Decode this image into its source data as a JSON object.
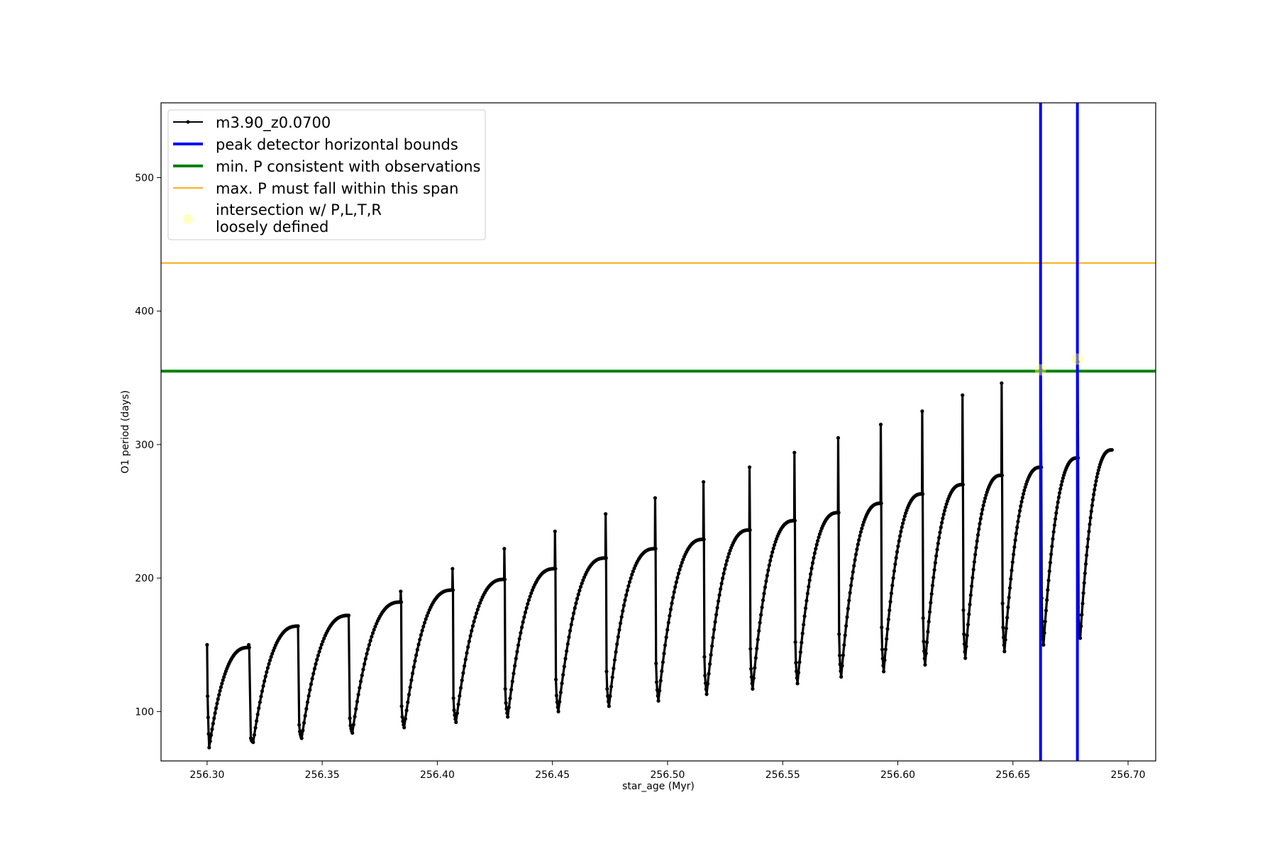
{
  "chart_data": {
    "type": "line",
    "title": "",
    "xlabel": "star_age (Myr)",
    "ylabel": "O1 period (days)",
    "xlim": [
      256.28,
      256.712
    ],
    "ylim": [
      63,
      556
    ],
    "xticks": [
      256.3,
      256.35,
      256.4,
      256.45,
      256.5,
      256.55,
      256.6,
      256.65,
      256.7
    ],
    "xtick_labels": [
      "256.30",
      "256.35",
      "256.40",
      "256.45",
      "256.50",
      "256.55",
      "256.60",
      "256.65",
      "256.70"
    ],
    "yticks": [
      100,
      200,
      300,
      400,
      500
    ],
    "ytick_labels": [
      "100",
      "200",
      "300",
      "400",
      "500"
    ],
    "grid": false,
    "legend_position": "top-left",
    "colors": {
      "series": "#000000",
      "bounds": "#0000ff",
      "min_p": "#008000",
      "max_p": "#ffa500",
      "intersection": "#ffff66"
    },
    "series": [
      {
        "name": "m3.90_z0.0700",
        "marker": "dot",
        "cycles": [
          {
            "t_start": 256.3,
            "t_end": 256.318,
            "p_start": 150,
            "p_min": 73,
            "p_max": 148,
            "p_spike": 150
          },
          {
            "t_start": 256.319,
            "t_end": 256.3395,
            "p_start": 80,
            "p_min": 77,
            "p_max": 164,
            "p_spike": 165
          },
          {
            "t_start": 256.34,
            "t_end": 256.3615,
            "p_start": 90,
            "p_min": 80,
            "p_max": 172,
            "p_spike": 172
          },
          {
            "t_start": 256.362,
            "t_end": 256.384,
            "p_start": 95,
            "p_min": 84,
            "p_max": 182,
            "p_spike": 190
          },
          {
            "t_start": 256.3845,
            "t_end": 256.4065,
            "p_start": 104,
            "p_min": 88,
            "p_max": 191,
            "p_spike": 207
          },
          {
            "t_start": 256.407,
            "t_end": 256.429,
            "p_start": 110,
            "p_min": 92,
            "p_max": 199,
            "p_spike": 222
          },
          {
            "t_start": 256.4295,
            "t_end": 256.451,
            "p_start": 117,
            "p_min": 96,
            "p_max": 207,
            "p_spike": 235
          },
          {
            "t_start": 256.4515,
            "t_end": 256.473,
            "p_start": 124,
            "p_min": 100,
            "p_max": 215,
            "p_spike": 248
          },
          {
            "t_start": 256.4735,
            "t_end": 256.4945,
            "p_start": 130,
            "p_min": 104,
            "p_max": 222,
            "p_spike": 260
          },
          {
            "t_start": 256.495,
            "t_end": 256.5155,
            "p_start": 136,
            "p_min": 108,
            "p_max": 229,
            "p_spike": 272
          },
          {
            "t_start": 256.516,
            "t_end": 256.5355,
            "p_start": 141,
            "p_min": 113,
            "p_max": 236,
            "p_spike": 283
          },
          {
            "t_start": 256.536,
            "t_end": 256.555,
            "p_start": 147,
            "p_min": 117,
            "p_max": 243,
            "p_spike": 294
          },
          {
            "t_start": 256.5555,
            "t_end": 256.574,
            "p_start": 152,
            "p_min": 121,
            "p_max": 249,
            "p_spike": 305
          },
          {
            "t_start": 256.5745,
            "t_end": 256.5925,
            "p_start": 158,
            "p_min": 126,
            "p_max": 256,
            "p_spike": 315
          },
          {
            "t_start": 256.593,
            "t_end": 256.6105,
            "p_start": 163,
            "p_min": 130,
            "p_max": 263,
            "p_spike": 325
          },
          {
            "t_start": 256.611,
            "t_end": 256.628,
            "p_start": 170,
            "p_min": 135,
            "p_max": 270,
            "p_spike": 337
          },
          {
            "t_start": 256.6285,
            "t_end": 256.645,
            "p_start": 176,
            "p_min": 140,
            "p_max": 277,
            "p_spike": 346
          },
          {
            "t_start": 256.6455,
            "t_end": 256.662,
            "p_start": 181,
            "p_min": 145,
            "p_max": 283,
            "p_spike": 356
          },
          {
            "t_start": 256.6625,
            "t_end": 256.678,
            "p_start": 185,
            "p_min": 150,
            "p_max": 290,
            "p_spike": 362
          },
          {
            "t_start": 256.6785,
            "t_end": 256.693,
            "p_start": 172,
            "p_min": 155,
            "p_max": 296,
            "p_spike": 296
          }
        ]
      },
      {
        "name": "peak detector horizontal bounds",
        "type": "vline",
        "x": [
          256.662,
          256.678
        ]
      },
      {
        "name": "min. P consistent with observations",
        "type": "hline",
        "y": 355
      },
      {
        "name": "max. P must fall within this span",
        "type": "hline",
        "y": 436
      },
      {
        "name": "intersection w/ P,L,T,R\nloosely defined",
        "type": "scatter",
        "points": [
          [
            256.662,
            356
          ],
          [
            256.678,
            364
          ]
        ]
      }
    ],
    "legend": [
      {
        "label": "m3.90_z0.0700",
        "style": "line-marker"
      },
      {
        "label": "peak detector horizontal bounds",
        "style": "thick-line"
      },
      {
        "label": "min. P consistent with observations",
        "style": "thick-line"
      },
      {
        "label": "max. P must fall within this span",
        "style": "thin-line"
      },
      {
        "label_lines": [
          "intersection w/ P,L,T,R",
          "loosely defined"
        ],
        "style": "dot"
      }
    ]
  }
}
